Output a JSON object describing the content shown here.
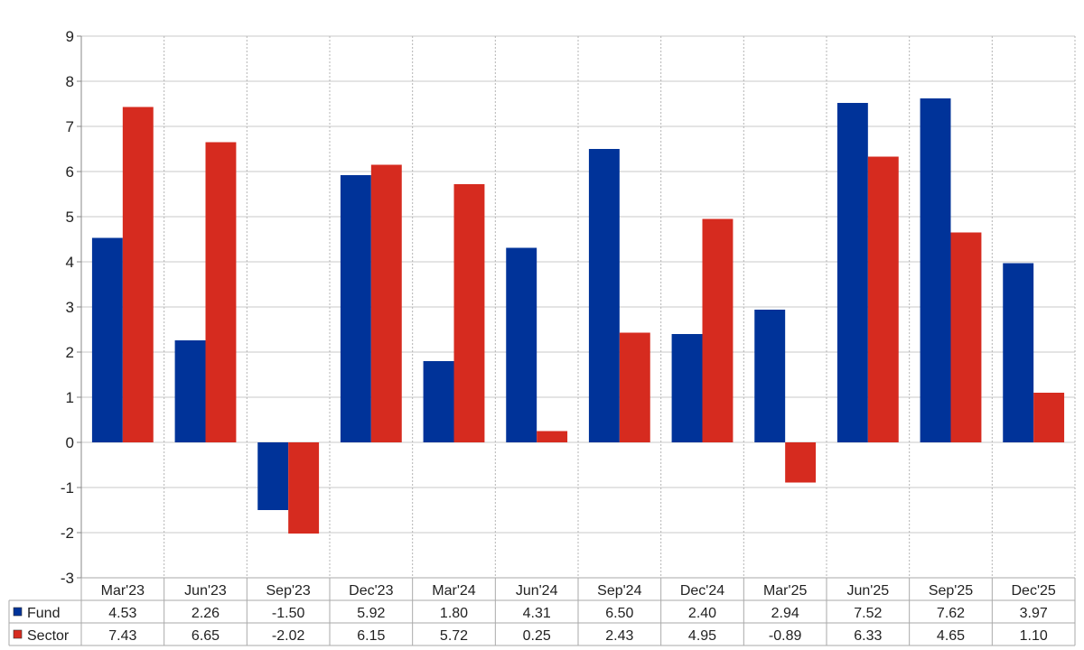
{
  "chart_data": {
    "type": "bar",
    "categories": [
      "Mar'23",
      "Jun'23",
      "Sep'23",
      "Dec'23",
      "Mar'24",
      "Jun'24",
      "Sep'24",
      "Dec'24",
      "Mar'25",
      "Jun'25",
      "Sep'25",
      "Dec'25"
    ],
    "series": [
      {
        "name": "Fund",
        "color": "#003399",
        "values": [
          4.53,
          2.26,
          -1.5,
          5.92,
          1.8,
          4.31,
          6.5,
          2.4,
          2.94,
          7.52,
          7.62,
          3.97
        ],
        "labels": [
          "4.53",
          "2.26",
          "-1.50",
          "5.92",
          "1.80",
          "4.31",
          "6.50",
          "2.40",
          "2.94",
          "7.52",
          "7.62",
          "3.97"
        ]
      },
      {
        "name": "Sector",
        "color": "#d62b1f",
        "values": [
          7.43,
          6.65,
          -2.02,
          6.15,
          5.72,
          0.25,
          2.43,
          4.95,
          -0.89,
          6.33,
          4.65,
          1.1
        ],
        "labels": [
          "7.43",
          "6.65",
          "-2.02",
          "6.15",
          "5.72",
          "0.25",
          "2.43",
          "4.95",
          "-0.89",
          "6.33",
          "4.65",
          "1.10"
        ]
      }
    ],
    "yticks": [
      "-3",
      "-2",
      "-1",
      "0",
      "1",
      "2",
      "3",
      "4",
      "5",
      "6",
      "7",
      "8",
      "9"
    ],
    "ylim": [
      -3,
      9
    ],
    "grid": true,
    "legend": "data-table-left",
    "negative_color": "#e00000",
    "title": "",
    "xlabel": "",
    "ylabel": ""
  }
}
